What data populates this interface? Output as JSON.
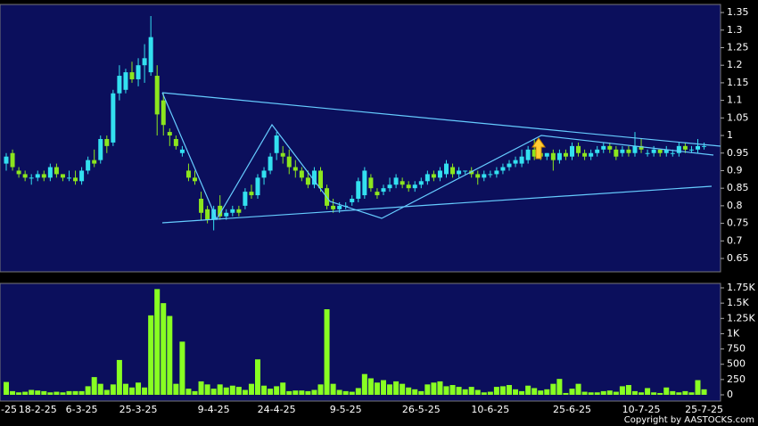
{
  "chart_data": {
    "type": "candlestick",
    "categories": [
      "-25",
      null,
      null,
      null,
      null,
      "18-2-25",
      null,
      null,
      null,
      null,
      null,
      null,
      "6-3-25",
      null,
      null,
      null,
      null,
      null,
      null,
      null,
      null,
      "25-3-25",
      null,
      null,
      null,
      null,
      null,
      null,
      null,
      null,
      null,
      null,
      null,
      "9-4-25",
      null,
      null,
      null,
      null,
      null,
      null,
      null,
      null,
      null,
      "24-4-25",
      null,
      null,
      null,
      null,
      null,
      null,
      null,
      null,
      null,
      null,
      "9-5-25",
      null,
      null,
      null,
      null,
      null,
      null,
      null,
      null,
      null,
      null,
      null,
      "26-5-25",
      null,
      null,
      null,
      null,
      null,
      null,
      null,
      null,
      null,
      null,
      "10-6-25",
      null,
      null,
      null,
      null,
      null,
      null,
      null,
      null,
      null,
      null,
      null,
      null,
      "25-6-25",
      null,
      null,
      null,
      null,
      null,
      null,
      null,
      null,
      null,
      null,
      "10-7-25",
      null,
      null,
      null,
      null,
      null,
      null,
      null,
      null,
      null,
      "25-7-25"
    ],
    "open": [
      0.92,
      0.95,
      0.9,
      0.89,
      0.88,
      0.88,
      0.89,
      0.88,
      0.91,
      0.89,
      0.88,
      0.88,
      0.87,
      0.9,
      0.93,
      0.93,
      0.99,
      0.98,
      1.12,
      1.13,
      1.18,
      1.16,
      1.2,
      1.18,
      1.17,
      1.1,
      1.01,
      0.99,
      0.95,
      0.9,
      0.88,
      0.82,
      0.79,
      0.76,
      0.8,
      0.77,
      0.78,
      0.79,
      0.8,
      0.84,
      0.83,
      0.88,
      0.9,
      0.95,
      0.95,
      0.94,
      0.91,
      0.9,
      0.88,
      0.86,
      0.9,
      0.85,
      0.8,
      0.79,
      0.8,
      0.81,
      0.82,
      0.83,
      0.88,
      0.84,
      0.84,
      0.85,
      0.86,
      0.87,
      0.86,
      0.85,
      0.86,
      0.87,
      0.89,
      0.88,
      0.89,
      0.91,
      0.89,
      0.9,
      0.9,
      0.89,
      0.88,
      0.89,
      0.89,
      0.9,
      0.91,
      0.92,
      0.92,
      0.93,
      0.96,
      0.95,
      0.94,
      0.95,
      0.93,
      0.95,
      0.94,
      0.97,
      0.95,
      0.94,
      0.95,
      0.96,
      0.97,
      0.96,
      0.95,
      0.96,
      0.95,
      0.97,
      0.95,
      0.95,
      0.96,
      0.95,
      0.95,
      0.95,
      0.97,
      0.96,
      0.96,
      0.97
    ],
    "high": [
      0.95,
      0.96,
      0.91,
      0.9,
      0.89,
      0.9,
      0.9,
      0.92,
      0.92,
      0.89,
      0.9,
      0.9,
      0.91,
      0.94,
      0.96,
      1.0,
      1.0,
      1.13,
      1.2,
      1.19,
      1.21,
      1.22,
      1.26,
      1.34,
      1.2,
      1.12,
      1.02,
      1.0,
      0.97,
      0.92,
      0.9,
      0.84,
      0.8,
      0.8,
      0.83,
      0.79,
      0.8,
      0.8,
      0.85,
      0.86,
      0.89,
      0.91,
      0.95,
      1.01,
      0.97,
      0.96,
      0.93,
      0.91,
      0.9,
      0.91,
      0.91,
      0.86,
      0.82,
      0.81,
      0.81,
      0.83,
      0.88,
      0.91,
      0.89,
      0.85,
      0.86,
      0.88,
      0.89,
      0.88,
      0.87,
      0.87,
      0.88,
      0.9,
      0.9,
      0.91,
      0.93,
      0.92,
      0.91,
      0.9,
      0.91,
      0.9,
      0.9,
      0.9,
      0.91,
      0.92,
      0.93,
      0.94,
      0.96,
      0.97,
      0.99,
      0.96,
      0.95,
      0.96,
      0.96,
      0.96,
      0.98,
      0.98,
      0.96,
      0.96,
      0.97,
      0.98,
      0.98,
      0.97,
      0.97,
      0.97,
      1.01,
      0.99,
      0.96,
      0.97,
      0.96,
      0.97,
      0.96,
      0.98,
      0.98,
      0.97,
      0.99,
      0.98
    ],
    "low": [
      0.9,
      0.9,
      0.88,
      0.87,
      0.86,
      0.87,
      0.87,
      0.87,
      0.88,
      0.87,
      0.87,
      0.86,
      0.86,
      0.89,
      0.91,
      0.92,
      0.95,
      0.97,
      1.1,
      1.12,
      1.15,
      1.14,
      1.15,
      1.17,
      1.0,
      1.0,
      0.97,
      0.96,
      0.94,
      0.87,
      0.86,
      0.76,
      0.75,
      0.73,
      0.76,
      0.76,
      0.77,
      0.77,
      0.79,
      0.82,
      0.82,
      0.86,
      0.89,
      0.93,
      0.92,
      0.89,
      0.88,
      0.87,
      0.85,
      0.85,
      0.84,
      0.79,
      0.78,
      0.78,
      0.79,
      0.8,
      0.81,
      0.82,
      0.84,
      0.82,
      0.83,
      0.84,
      0.85,
      0.85,
      0.84,
      0.84,
      0.85,
      0.86,
      0.87,
      0.87,
      0.88,
      0.88,
      0.88,
      0.89,
      0.88,
      0.86,
      0.87,
      0.88,
      0.88,
      0.89,
      0.9,
      0.91,
      0.91,
      0.92,
      0.93,
      0.93,
      0.93,
      0.9,
      0.92,
      0.93,
      0.93,
      0.94,
      0.93,
      0.93,
      0.94,
      0.95,
      0.95,
      0.93,
      0.94,
      0.94,
      0.94,
      0.95,
      0.94,
      0.94,
      0.94,
      0.94,
      0.94,
      0.94,
      0.95,
      0.95,
      0.95,
      0.96
    ],
    "close": [
      0.94,
      0.91,
      0.89,
      0.88,
      0.88,
      0.89,
      0.88,
      0.91,
      0.89,
      0.88,
      0.88,
      0.87,
      0.9,
      0.93,
      0.92,
      0.99,
      0.97,
      1.12,
      1.17,
      1.18,
      1.16,
      1.2,
      1.22,
      1.28,
      1.06,
      1.03,
      1.0,
      0.97,
      0.96,
      0.88,
      0.87,
      0.78,
      0.76,
      0.79,
      0.77,
      0.78,
      0.79,
      0.78,
      0.84,
      0.83,
      0.88,
      0.9,
      0.94,
      1.0,
      0.94,
      0.91,
      0.9,
      0.88,
      0.86,
      0.9,
      0.85,
      0.8,
      0.79,
      0.8,
      0.8,
      0.82,
      0.87,
      0.9,
      0.85,
      0.83,
      0.85,
      0.86,
      0.88,
      0.86,
      0.85,
      0.86,
      0.87,
      0.89,
      0.88,
      0.9,
      0.92,
      0.89,
      0.9,
      0.9,
      0.89,
      0.88,
      0.89,
      0.89,
      0.9,
      0.91,
      0.92,
      0.93,
      0.94,
      0.96,
      0.94,
      0.94,
      0.95,
      0.93,
      0.95,
      0.94,
      0.97,
      0.95,
      0.94,
      0.95,
      0.96,
      0.97,
      0.96,
      0.94,
      0.96,
      0.95,
      0.97,
      0.96,
      0.95,
      0.96,
      0.95,
      0.96,
      0.95,
      0.97,
      0.96,
      0.96,
      0.97,
      0.97
    ],
    "up_color": "#33e0f0",
    "down_color": "#8ce61e",
    "ylim": [
      0.612,
      1.373
    ],
    "yticks": [
      0.65,
      0.7,
      0.75,
      0.8,
      0.85,
      0.9,
      0.95,
      1,
      1.05,
      1.1,
      1.15,
      1.2,
      1.25,
      1.3,
      1.35
    ],
    "volume": [
      210,
      60,
      40,
      50,
      80,
      70,
      60,
      40,
      50,
      40,
      60,
      60,
      60,
      140,
      290,
      180,
      80,
      170,
      570,
      180,
      120,
      200,
      120,
      1300,
      1730,
      1500,
      1290,
      180,
      870,
      100,
      60,
      220,
      170,
      100,
      170,
      120,
      150,
      130,
      80,
      180,
      580,
      150,
      100,
      140,
      200,
      60,
      70,
      70,
      60,
      80,
      170,
      1400,
      180,
      80,
      60,
      50,
      110,
      340,
      270,
      200,
      240,
      170,
      220,
      180,
      120,
      90,
      60,
      170,
      200,
      220,
      140,
      160,
      130,
      90,
      130,
      80,
      40,
      50,
      130,
      140,
      160,
      90,
      60,
      150,
      110,
      70,
      90,
      180,
      260,
      30,
      100,
      180,
      50,
      40,
      40,
      60,
      70,
      50,
      140,
      160,
      60,
      40,
      110,
      40,
      30,
      120,
      60,
      40,
      60,
      40,
      240,
      90
    ],
    "volume_color": "#88ff22",
    "vlim": [
      -102,
      1823
    ],
    "vticks": [
      {
        "value": 0,
        "label": "0"
      },
      {
        "value": 250,
        "label": "250"
      },
      {
        "value": 500,
        "label": "500"
      },
      {
        "value": 750,
        "label": "750"
      },
      {
        "value": 1000,
        "label": "1K"
      },
      {
        "value": 1250,
        "label": "1.25K"
      },
      {
        "value": 1500,
        "label": "1.5K"
      },
      {
        "value": 1750,
        "label": "1.75K"
      }
    ],
    "copyright": "Copyright by AASTOCKS.com"
  }
}
